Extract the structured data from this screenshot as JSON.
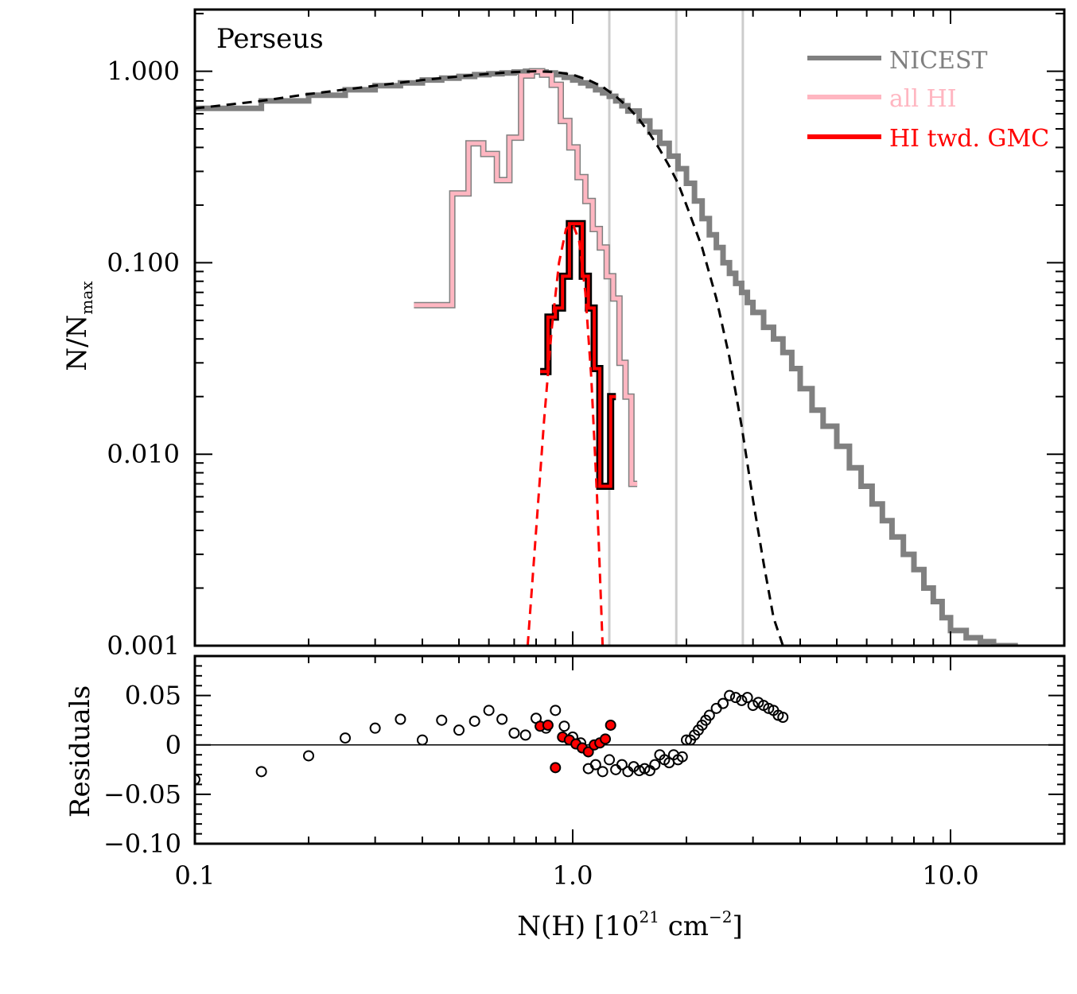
{
  "chart_data": [
    {
      "type": "line",
      "panel": "main",
      "annotation": "Perseus",
      "xlabel": "N(H) [10^21 cm^-2]",
      "xlabel_parts": {
        "base": "N(H) [10",
        "exp": "21",
        "mid": " cm",
        "exp2": "−2",
        "end": "]"
      },
      "ylabel_parts": {
        "base": "N/N",
        "sub": "max"
      },
      "x_scale": "log",
      "y_scale": "log",
      "xlim": [
        0.1,
        20
      ],
      "ylim": [
        0.001,
        2.1
      ],
      "y_ticks": [
        {
          "value": 1.0,
          "label": "1.000"
        },
        {
          "value": 0.1,
          "label": "0.100"
        },
        {
          "value": 0.01,
          "label": "0.010"
        },
        {
          "value": 0.001,
          "label": "0.001"
        }
      ],
      "vertical_lines": [
        1.25,
        1.88,
        2.82
      ],
      "legend": {
        "position": "top-right",
        "entries": [
          {
            "label": "NICEST",
            "color": "#808080"
          },
          {
            "label": "all HI",
            "color": "#ffb6c1"
          },
          {
            "label": "HI twd. GMC",
            "color": "#ff0000"
          }
        ]
      },
      "series": [
        {
          "name": "NICEST",
          "color": "#808080",
          "style": "step",
          "x": [
            0.1,
            0.15,
            0.2,
            0.25,
            0.3,
            0.35,
            0.4,
            0.45,
            0.5,
            0.55,
            0.6,
            0.65,
            0.7,
            0.75,
            0.8,
            0.85,
            0.9,
            0.95,
            1.0,
            1.05,
            1.1,
            1.15,
            1.2,
            1.25,
            1.3,
            1.35,
            1.4,
            1.5,
            1.6,
            1.7,
            1.8,
            1.9,
            2.0,
            2.1,
            2.2,
            2.3,
            2.4,
            2.5,
            2.6,
            2.7,
            2.8,
            2.9,
            3.0,
            3.2,
            3.4,
            3.6,
            3.8,
            4.0,
            4.3,
            4.6,
            5.0,
            5.4,
            5.8,
            6.2,
            6.6,
            7.0,
            7.5,
            8.0,
            8.5,
            9.0,
            9.5,
            10.0,
            11.0,
            12.0,
            13.0,
            14.0
          ],
          "y": [
            0.64,
            0.7,
            0.75,
            0.8,
            0.84,
            0.87,
            0.9,
            0.92,
            0.94,
            0.96,
            0.97,
            0.98,
            0.99,
            1.0,
            0.99,
            0.98,
            0.96,
            0.93,
            0.9,
            0.87,
            0.84,
            0.8,
            0.77,
            0.74,
            0.7,
            0.66,
            0.62,
            0.55,
            0.48,
            0.42,
            0.36,
            0.31,
            0.26,
            0.21,
            0.17,
            0.14,
            0.12,
            0.1,
            0.088,
            0.078,
            0.07,
            0.062,
            0.055,
            0.046,
            0.04,
            0.034,
            0.028,
            0.022,
            0.017,
            0.014,
            0.011,
            0.0085,
            0.0068,
            0.0055,
            0.0045,
            0.0037,
            0.003,
            0.0025,
            0.002,
            0.0017,
            0.0014,
            0.0012,
            0.0011,
            0.00105,
            0.001,
            0.001
          ]
        },
        {
          "name": "all HI",
          "color": "#ffb6c1",
          "style": "step",
          "x": [
            0.38,
            0.43,
            0.48,
            0.53,
            0.58,
            0.63,
            0.68,
            0.73,
            0.78,
            0.83,
            0.88,
            0.93,
            0.98,
            1.03,
            1.08,
            1.13,
            1.18,
            1.23,
            1.28,
            1.33,
            1.38,
            1.43
          ],
          "y": [
            0.06,
            0.06,
            0.23,
            0.42,
            0.37,
            0.27,
            0.45,
            0.95,
            1.0,
            0.96,
            0.85,
            0.55,
            0.4,
            0.28,
            0.21,
            0.15,
            0.12,
            0.085,
            0.065,
            0.03,
            0.02,
            0.007
          ]
        },
        {
          "name": "HI twd. GMC",
          "color": "#ff0000",
          "style": "step",
          "x": [
            0.82,
            0.86,
            0.9,
            0.94,
            0.98,
            1.02,
            1.06,
            1.1,
            1.14,
            1.18,
            1.22,
            1.26
          ],
          "y": [
            0.027,
            0.052,
            0.058,
            0.085,
            0.16,
            0.16,
            0.085,
            0.058,
            0.028,
            0.0068,
            0.0068,
            0.02
          ]
        },
        {
          "name": "",
          "color": "#000000",
          "style": "dashed",
          "x": [
            0.1,
            0.15,
            0.2,
            0.3,
            0.4,
            0.5,
            0.6,
            0.7,
            0.8,
            0.9,
            1.0,
            1.1,
            1.2,
            1.3,
            1.4,
            1.5,
            1.6,
            1.7,
            1.8,
            1.9,
            2.0,
            2.2,
            2.4,
            2.6,
            2.8,
            3.0,
            3.2,
            3.4,
            3.6
          ],
          "y": [
            0.64,
            0.7,
            0.76,
            0.84,
            0.9,
            0.94,
            0.97,
            0.99,
            1.0,
            0.99,
            0.96,
            0.9,
            0.83,
            0.74,
            0.65,
            0.56,
            0.47,
            0.39,
            0.32,
            0.26,
            0.2,
            0.12,
            0.065,
            0.032,
            0.014,
            0.0058,
            0.0027,
            0.0014,
            0.001
          ]
        },
        {
          "name": "",
          "color": "#ff0000",
          "style": "dashed",
          "x": [
            0.76,
            0.8,
            0.84,
            0.88,
            0.92,
            0.96,
            1.0,
            1.04,
            1.08,
            1.12,
            1.16,
            1.2
          ],
          "y": [
            0.001,
            0.004,
            0.015,
            0.045,
            0.1,
            0.15,
            0.16,
            0.13,
            0.07,
            0.025,
            0.006,
            0.001
          ]
        }
      ]
    },
    {
      "type": "scatter",
      "panel": "residuals",
      "ylabel": "Residuals",
      "x_scale": "log",
      "xlim": [
        0.1,
        20
      ],
      "ylim": [
        -0.1,
        0.09
      ],
      "x_ticks": [
        {
          "value": 0.1,
          "label": "0.1"
        },
        {
          "value": 1.0,
          "label": "1.0"
        },
        {
          "value": 10.0,
          "label": "10.0"
        }
      ],
      "y_ticks": [
        {
          "value": 0.05,
          "label": "0.05"
        },
        {
          "value": 0,
          "label": "0"
        },
        {
          "value": -0.05,
          "label": "−0.05"
        },
        {
          "value": -0.1,
          "label": "−0.10"
        }
      ],
      "series": [
        {
          "name": "",
          "color": "#000000",
          "fill": "none",
          "x": [
            0.1,
            0.15,
            0.2,
            0.25,
            0.3,
            0.35,
            0.4,
            0.45,
            0.5,
            0.55,
            0.6,
            0.65,
            0.7,
            0.75,
            0.8,
            0.85,
            0.9,
            0.95,
            1.0,
            1.05,
            1.1,
            1.15,
            1.2,
            1.25,
            1.3,
            1.35,
            1.4,
            1.45,
            1.5,
            1.55,
            1.6,
            1.65,
            1.7,
            1.75,
            1.8,
            1.85,
            1.9,
            1.95,
            2.0,
            2.05,
            2.1,
            2.15,
            2.2,
            2.25,
            2.3,
            2.4,
            2.5,
            2.6,
            2.7,
            2.8,
            2.9,
            3.0,
            3.1,
            3.2,
            3.3,
            3.4,
            3.5,
            3.6
          ],
          "y": [
            -0.035,
            -0.027,
            -0.011,
            0.007,
            0.017,
            0.026,
            0.005,
            0.025,
            0.015,
            0.024,
            0.035,
            0.026,
            0.012,
            0.01,
            0.027,
            0.017,
            0.035,
            0.019,
            0.008,
            0.002,
            -0.024,
            -0.02,
            -0.027,
            -0.015,
            -0.025,
            -0.02,
            -0.027,
            -0.022,
            -0.026,
            -0.024,
            -0.026,
            -0.02,
            -0.01,
            -0.015,
            -0.018,
            -0.01,
            -0.015,
            -0.012,
            0.005,
            0.005,
            0.01,
            0.015,
            0.02,
            0.025,
            0.03,
            0.037,
            0.042,
            0.05,
            0.048,
            0.045,
            0.048,
            0.04,
            0.043,
            0.04,
            0.037,
            0.035,
            0.03,
            0.028
          ]
        },
        {
          "name": "",
          "color": "#000000",
          "fill": "#ff0000",
          "x": [
            0.82,
            0.86,
            0.9,
            0.94,
            0.98,
            1.02,
            1.06,
            1.1,
            1.14,
            1.18,
            1.22,
            1.26
          ],
          "y": [
            0.019,
            0.02,
            -0.023,
            0.008,
            0.005,
            0.001,
            -0.003,
            -0.007,
            0.0,
            0.002,
            0.006,
            0.02
          ]
        }
      ]
    }
  ]
}
